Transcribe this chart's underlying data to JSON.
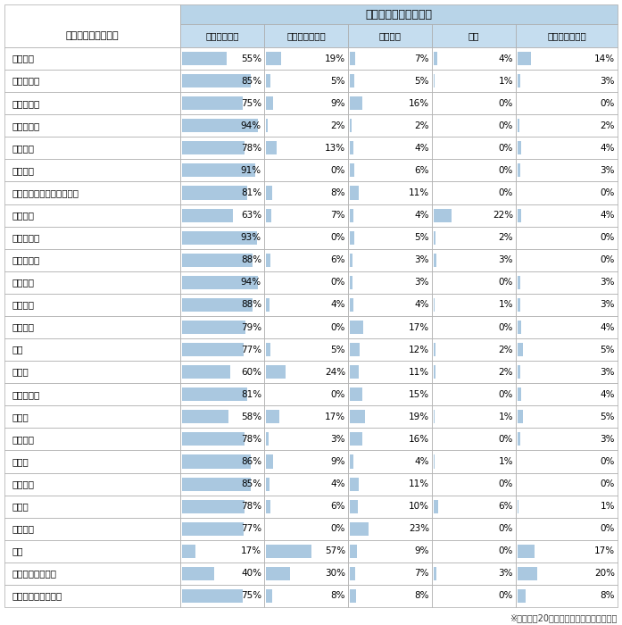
{
  "title": "専門医の資格取得状況",
  "col_header_left": "現在の主たる診療科",
  "columns": [
    "取得している",
    "取得していない",
    "取得予定",
    "失効",
    "該当の資格なし"
  ],
  "rows": [
    {
      "label": "一般内科",
      "values": [
        55,
        19,
        7,
        4,
        14
      ]
    },
    {
      "label": "消化器内科",
      "values": [
        85,
        5,
        5,
        1,
        3
      ]
    },
    {
      "label": "呼吸器内科",
      "values": [
        75,
        9,
        16,
        0,
        0
      ]
    },
    {
      "label": "循環器内科",
      "values": [
        94,
        2,
        2,
        0,
        2
      ]
    },
    {
      "label": "腎臓内科",
      "values": [
        78,
        13,
        4,
        0,
        4
      ]
    },
    {
      "label": "神経内科",
      "values": [
        91,
        0,
        6,
        0,
        3
      ]
    },
    {
      "label": "内分泌・糖尿病・代謝内科",
      "values": [
        81,
        8,
        11,
        0,
        0
      ]
    },
    {
      "label": "一般外科",
      "values": [
        63,
        7,
        4,
        22,
        4
      ]
    },
    {
      "label": "消化器外科",
      "values": [
        93,
        0,
        5,
        2,
        0
      ]
    },
    {
      "label": "脳神経外科",
      "values": [
        88,
        6,
        3,
        3,
        0
      ]
    },
    {
      "label": "泌尿器科",
      "values": [
        94,
        0,
        3,
        0,
        3
      ]
    },
    {
      "label": "整形外科",
      "values": [
        88,
        4,
        4,
        1,
        3
      ]
    },
    {
      "label": "形成外科",
      "values": [
        79,
        0,
        17,
        0,
        4
      ]
    },
    {
      "label": "眼科",
      "values": [
        77,
        5,
        12,
        2,
        5
      ]
    },
    {
      "label": "皮膚科",
      "values": [
        60,
        24,
        11,
        2,
        3
      ]
    },
    {
      "label": "耳鼻咽喉科",
      "values": [
        81,
        0,
        15,
        0,
        4
      ]
    },
    {
      "label": "精神科",
      "values": [
        58,
        17,
        19,
        1,
        5
      ]
    },
    {
      "label": "放射線科",
      "values": [
        78,
        3,
        16,
        0,
        3
      ]
    },
    {
      "label": "小児科",
      "values": [
        86,
        9,
        4,
        1,
        0
      ]
    },
    {
      "label": "産婦人科",
      "values": [
        85,
        4,
        11,
        0,
        0
      ]
    },
    {
      "label": "麻酔科",
      "values": [
        78,
        6,
        10,
        6,
        1
      ]
    },
    {
      "label": "救命救急",
      "values": [
        77,
        0,
        23,
        0,
        0
      ]
    },
    {
      "label": "美容",
      "values": [
        17,
        57,
        9,
        0,
        17
      ]
    },
    {
      "label": "健診・人間ドック",
      "values": [
        40,
        30,
        7,
        3,
        20
      ]
    },
    {
      "label": "リハビリテーション",
      "values": [
        75,
        8,
        8,
        0,
        8
      ]
    }
  ],
  "footnote": "※回答数が20件以上あった診療科のみ表示",
  "bar_color": "#aac8e0",
  "header_bg": "#c5ddef",
  "title_bg": "#b8d4e8",
  "row_bg_odd": "#ffffff",
  "row_bg_even": "#ffffff",
  "border_color": "#aaaaaa",
  "text_color": "#000000"
}
